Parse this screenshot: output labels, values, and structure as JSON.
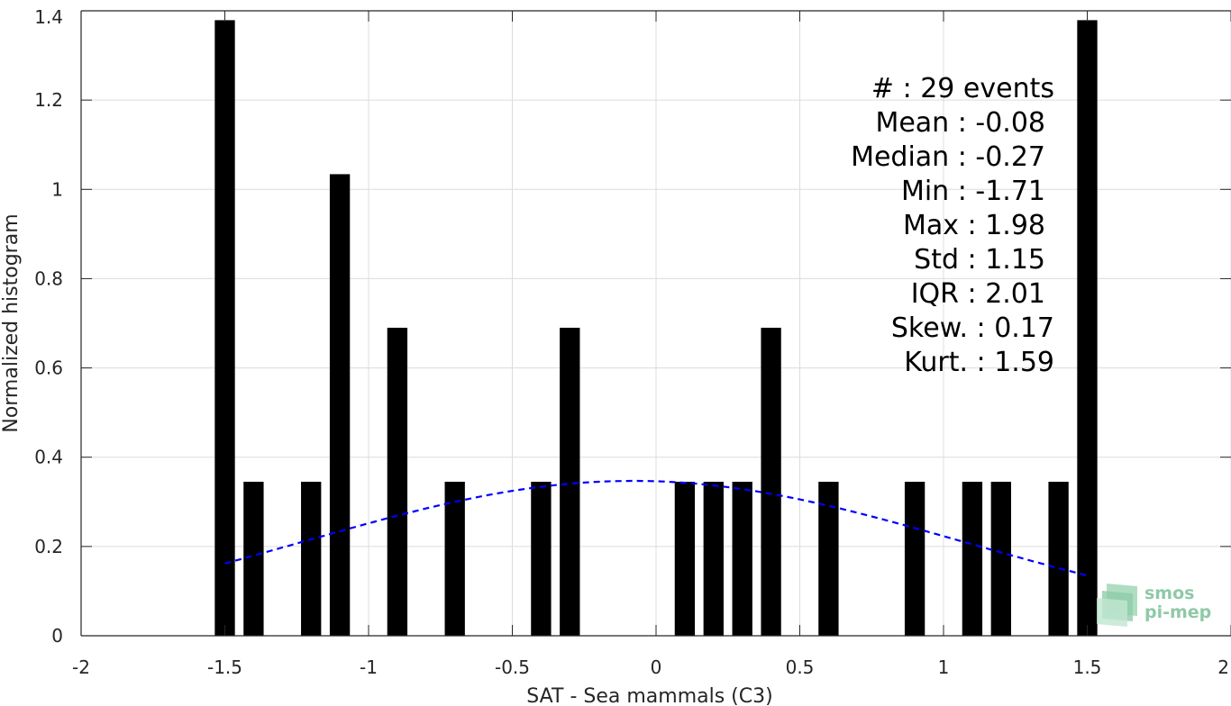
{
  "chart_data": {
    "type": "bar",
    "xlabel": "SAT - Sea mammals (C3)",
    "ylabel": "Normalized histogram",
    "xlim": [
      -2,
      2
    ],
    "ylim": [
      0,
      1.4
    ],
    "xticks": [
      -2,
      -1.5,
      -1,
      -0.5,
      0,
      0.5,
      1,
      1.5,
      2
    ],
    "xtick_labels": [
      "-2",
      "-1.5",
      "-1",
      "-0.5",
      "0",
      "0.5",
      "1",
      "1.5",
      "2"
    ],
    "yticks": [
      0,
      0.2,
      0.4,
      0.6,
      0.8,
      1,
      1.2,
      1.4
    ],
    "ytick_labels": [
      "0",
      "0.2",
      "0.4",
      "0.6",
      "0.8",
      "1",
      "1.2",
      "1.4"
    ],
    "grid": true,
    "bin_width": 0.1,
    "bar_color": "#000000",
    "bars": [
      {
        "x": -1.5,
        "y": 1.379
      },
      {
        "x": -1.4,
        "y": 0.345
      },
      {
        "x": -1.2,
        "y": 0.345
      },
      {
        "x": -1.1,
        "y": 1.034
      },
      {
        "x": -0.9,
        "y": 0.69
      },
      {
        "x": -0.7,
        "y": 0.345
      },
      {
        "x": -0.4,
        "y": 0.345
      },
      {
        "x": -0.3,
        "y": 0.69
      },
      {
        "x": 0.1,
        "y": 0.345
      },
      {
        "x": 0.2,
        "y": 0.345
      },
      {
        "x": 0.3,
        "y": 0.345
      },
      {
        "x": 0.4,
        "y": 0.69
      },
      {
        "x": 0.6,
        "y": 0.345
      },
      {
        "x": 0.9,
        "y": 0.345
      },
      {
        "x": 1.1,
        "y": 0.345
      },
      {
        "x": 1.2,
        "y": 0.345
      },
      {
        "x": 1.4,
        "y": 0.345
      },
      {
        "x": 1.5,
        "y": 1.379
      }
    ],
    "fit_curve": {
      "style": "dashed",
      "color": "#0000ff",
      "mean": -0.08,
      "std": 1.15,
      "x_range": [
        -1.5,
        1.5
      ]
    },
    "annotations": [
      "#  : 29 events",
      "Mean : -0.08",
      "Median : -0.27",
      "Min : -1.71",
      "Max : 1.98",
      "Std : 1.15",
      "IQR : 2.01",
      "Skew. : 0.17",
      "Kurt. : 1.59"
    ]
  },
  "logo": {
    "line1": "smos",
    "line2": "pi-mep"
  }
}
